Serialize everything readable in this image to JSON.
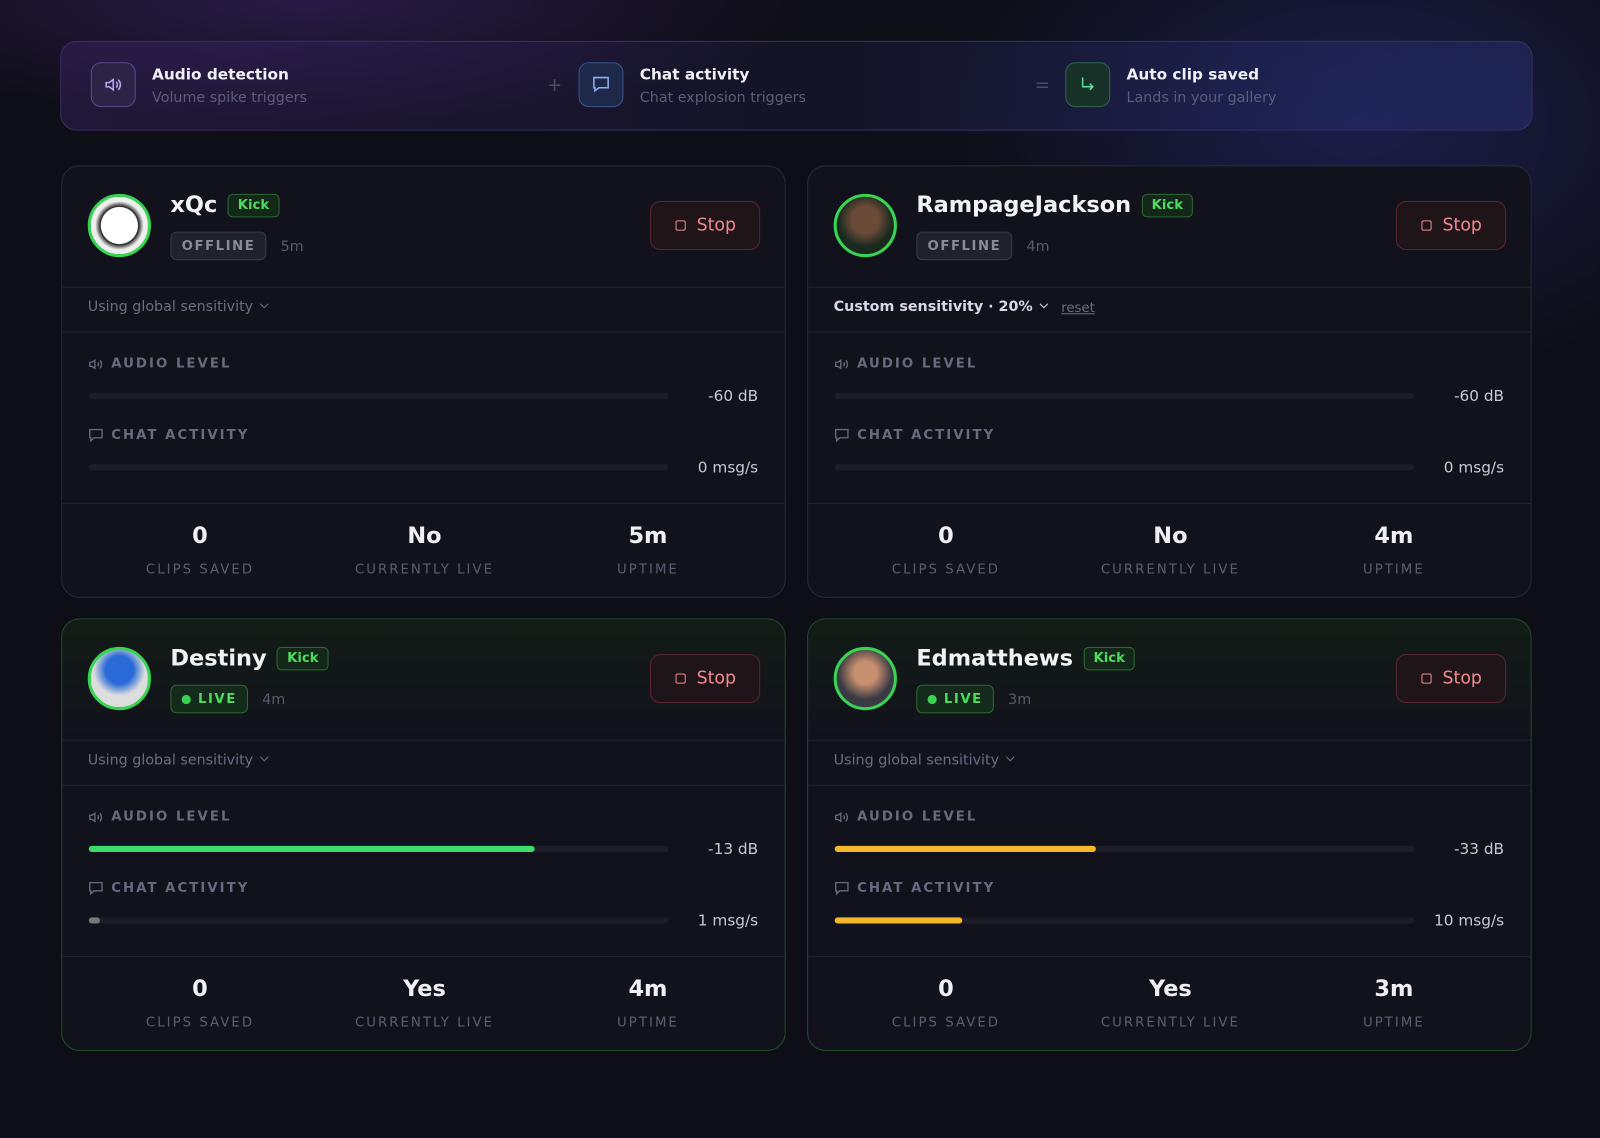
{
  "pipeline": {
    "steps": [
      {
        "title": "Audio detection",
        "subtitle": "Volume spike triggers"
      },
      {
        "title": "Chat activity",
        "subtitle": "Chat explosion triggers"
      },
      {
        "title": "Auto clip saved",
        "subtitle": "Lands in your gallery"
      }
    ],
    "operators": [
      "+",
      "="
    ]
  },
  "streamers": [
    {
      "name": "xQc",
      "platform": "Kick",
      "status": "OFFLINE",
      "age": "5m",
      "button": "Stop",
      "sensitivity": "Using global sensitivity",
      "audio_label": "AUDIO LEVEL",
      "audio_value": "-60 dB",
      "chat_label": "CHAT ACTIVITY",
      "chat_value": "0 msg/s",
      "stats": [
        {
          "value": 0,
          "label": "CLIPS SAVED"
        },
        {
          "value": "No",
          "label": "CURRENTLY LIVE"
        },
        {
          "value": "5m",
          "label": "UPTIME"
        }
      ]
    },
    {
      "name": "RampageJackson",
      "platform": "Kick",
      "status": "OFFLINE",
      "age": "4m",
      "button": "Stop",
      "sensitivity": "Custom sensitivity · 20%",
      "reset": "reset",
      "audio_label": "AUDIO LEVEL",
      "audio_value": "-60 dB",
      "chat_label": "CHAT ACTIVITY",
      "chat_value": "0 msg/s",
      "stats": [
        {
          "value": 0,
          "label": "CLIPS SAVED"
        },
        {
          "value": "No",
          "label": "CURRENTLY LIVE"
        },
        {
          "value": "4m",
          "label": "UPTIME"
        }
      ]
    },
    {
      "name": "Destiny",
      "platform": "Kick",
      "status": "LIVE",
      "age": "4m",
      "button": "Stop",
      "sensitivity": "Using global sensitivity",
      "audio_label": "AUDIO LEVEL",
      "audio_value": "-13 dB",
      "chat_label": "CHAT ACTIVITY",
      "chat_value": "1 msg/s",
      "stats": [
        {
          "value": 0,
          "label": "CLIPS SAVED"
        },
        {
          "value": "Yes",
          "label": "CURRENTLY LIVE"
        },
        {
          "value": "4m",
          "label": "UPTIME"
        }
      ]
    },
    {
      "name": "Edmatthews",
      "platform": "Kick",
      "status": "LIVE",
      "age": "3m",
      "button": "Stop",
      "sensitivity": "Using global sensitivity",
      "audio_label": "AUDIO LEVEL",
      "audio_value": "-33 dB",
      "chat_label": "CHAT ACTIVITY",
      "chat_value": "10 msg/s",
      "stats": [
        {
          "value": 0,
          "label": "CLIPS SAVED"
        },
        {
          "value": "Yes",
          "label": "CURRENTLY LIVE"
        },
        {
          "value": "3m",
          "label": "UPTIME"
        }
      ]
    }
  ]
}
